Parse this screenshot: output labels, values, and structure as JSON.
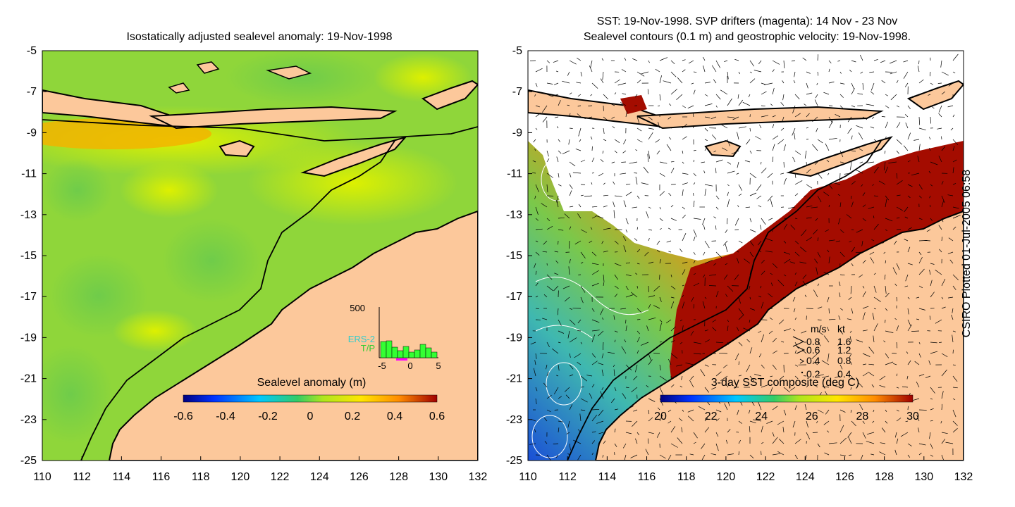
{
  "left_panel": {
    "title": "Isostatically adjusted sealevel anomaly: 19-Nov-1998",
    "colorbar_label": "Sealevel anomaly (m)",
    "colorbar_ticks": [
      "-0.6",
      "-0.4",
      "-0.2",
      "0",
      "0.2",
      "0.4",
      "0.6"
    ],
    "histogram": {
      "ymax_label": "500",
      "legend": [
        "ERS-2",
        "T/P"
      ],
      "xticks": [
        "-5",
        "0",
        "5"
      ]
    }
  },
  "right_panel": {
    "title_line1": "SST: 19-Nov-1998. SVP drifters (magenta): 14 Nov - 23 Nov",
    "title_line2": "Sealevel contours (0.1 m) and geostrophic velocity: 19-Nov-1998.",
    "colorbar_label": "3-day SST composite (deg C)",
    "colorbar_ticks": [
      "20",
      "22",
      "24",
      "26",
      "28",
      "30"
    ],
    "velocity_key": {
      "header_ms": "m/s",
      "header_kt": "kt",
      "rows": [
        {
          "ms": "0.8",
          "kt": "1.6"
        },
        {
          "ms": "0.6",
          "kt": "1.2"
        },
        {
          "ms": "0.4",
          "kt": "0.8"
        },
        {
          "ms": "0.2",
          "kt": "0.4"
        }
      ]
    }
  },
  "axes": {
    "lat_ticks": [
      "-5",
      "-7",
      "-9",
      "-11",
      "-13",
      "-15",
      "-17",
      "-19",
      "-21",
      "-23",
      "-25"
    ],
    "lon_ticks": [
      "110",
      "112",
      "114",
      "116",
      "118",
      "120",
      "122",
      "124",
      "126",
      "128",
      "130",
      "132"
    ]
  },
  "credit": "CSIRO Plotted 01-Jul-2005 06:58",
  "colors": {
    "land": "#fcc89b",
    "ocean_left": "#8fd63a",
    "sst_warm": "#a40c00",
    "sst_cloud": "#ffffff"
  }
}
